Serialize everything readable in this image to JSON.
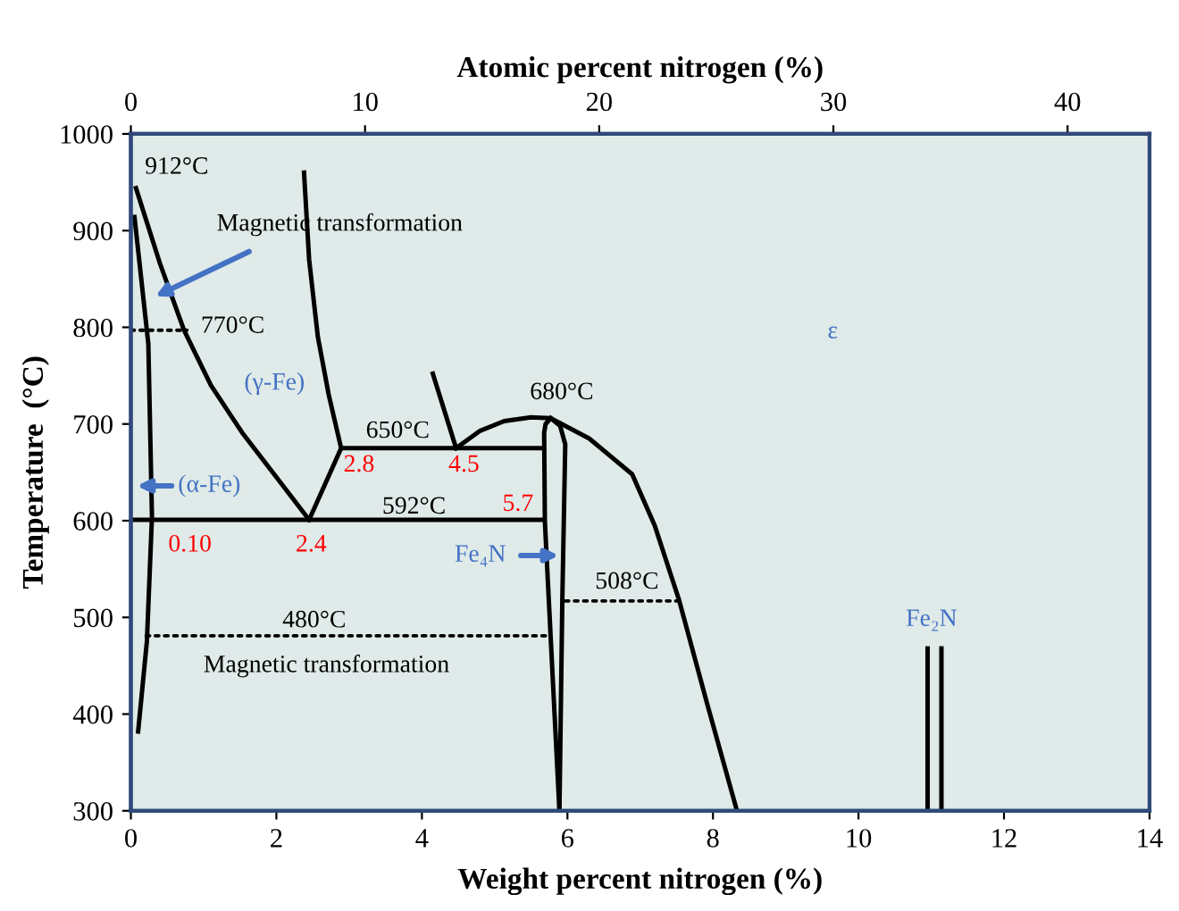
{
  "chart_data": {
    "type": "line",
    "xlabel": "Weight percent nitrogen (%)",
    "ylabel": "Temperature  (°C)",
    "x2label": "Atomic percent nitrogen (%)",
    "xlim": [
      0,
      14
    ],
    "xticks": [
      0,
      2,
      4,
      6,
      8,
      10,
      12,
      14
    ],
    "ylim": [
      300,
      1000
    ],
    "yticks": [
      300,
      400,
      500,
      600,
      700,
      800,
      900,
      1000
    ],
    "x2lim": [
      0,
      43.5
    ],
    "x2ticks": [
      0,
      10,
      20,
      30,
      40
    ],
    "grid": false,
    "marker": "none",
    "series": [
      {
        "color": "#000000",
        "line_style": "solid",
        "x": [
          0.05,
          0.24,
          0.29,
          0.22,
          0.1
        ],
        "values": [
          914,
          783,
          604,
          475,
          382
        ]
      },
      {
        "color": "#000000",
        "line_style": "solid",
        "x": [
          0.07,
          0.4,
          0.73,
          1.1,
          1.53,
          2.0,
          2.45
        ],
        "values": [
          944,
          866,
          797,
          740,
          691,
          645,
          601
        ]
      },
      {
        "color": "#000000",
        "line_style": "solid",
        "x": [
          2.45,
          2.89
        ],
        "values": [
          601,
          675
        ]
      },
      {
        "color": "#000000",
        "line_style": "solid",
        "x": [
          2.38,
          2.45,
          2.57,
          2.72,
          2.89
        ],
        "values": [
          960,
          870,
          790,
          730,
          675
        ]
      },
      {
        "color": "#000000",
        "line_style": "solid",
        "x": [
          2.89,
          5.65
        ],
        "values": [
          675,
          675
        ]
      },
      {
        "color": "#000000",
        "line_style": "solid",
        "x": [
          0,
          5.68
        ],
        "values": [
          601,
          601
        ]
      },
      {
        "color": "#000000",
        "line_style": "solid",
        "x": [
          4.15,
          4.47
        ],
        "values": [
          752,
          675
        ]
      },
      {
        "color": "#000000",
        "line_style": "solid",
        "x": [
          4.47,
          4.8,
          5.13,
          5.5,
          5.77,
          6.3,
          6.89,
          7.2,
          7.53,
          7.93,
          8.33
        ],
        "values": [
          675,
          693,
          703,
          707,
          706,
          685,
          648,
          595,
          519,
          408,
          300
        ]
      },
      {
        "color": "#000000",
        "line_style": "solid",
        "x": [
          5.77,
          5.7,
          5.68,
          5.69,
          5.77,
          5.89
        ],
        "values": [
          706,
          700,
          691,
          599,
          479,
          300
        ]
      },
      {
        "color": "#000000",
        "line_style": "solid",
        "x": [
          5.77,
          5.9,
          5.97,
          5.93,
          5.89
        ],
        "values": [
          706,
          698,
          679,
          519,
          300
        ]
      },
      {
        "color": "#000000",
        "line_style": "dotted",
        "x": [
          0,
          0.77
        ],
        "values": [
          797,
          797
        ]
      },
      {
        "color": "#000000",
        "line_style": "dotted",
        "x": [
          0.21,
          5.73
        ],
        "values": [
          481,
          481
        ]
      },
      {
        "color": "#000000",
        "line_style": "dotted",
        "x": [
          5.97,
          7.57
        ],
        "values": [
          517,
          517
        ]
      },
      {
        "color": "#000000",
        "line_style": "solid",
        "x": [
          10.95,
          10.95
        ],
        "values": [
          300,
          468
        ]
      },
      {
        "color": "#000000",
        "line_style": "solid",
        "x": [
          11.14,
          11.14
        ],
        "values": [
          300,
          468
        ]
      }
    ],
    "annotations": [
      "912°C",
      "Magnetic transformation",
      "770°C",
      "(γ-Fe)",
      "680°C",
      "650°C",
      "2.8",
      "4.5",
      "(α-Fe)",
      "592°C",
      "5.7",
      "0.10",
      "2.4",
      {
        "text": "Fe₄N",
        "x": 5.88,
        "y": 564
      },
      "508°C",
      "480°C",
      "Magnetic transformation",
      "ε",
      "Fe₂N"
    ]
  }
}
